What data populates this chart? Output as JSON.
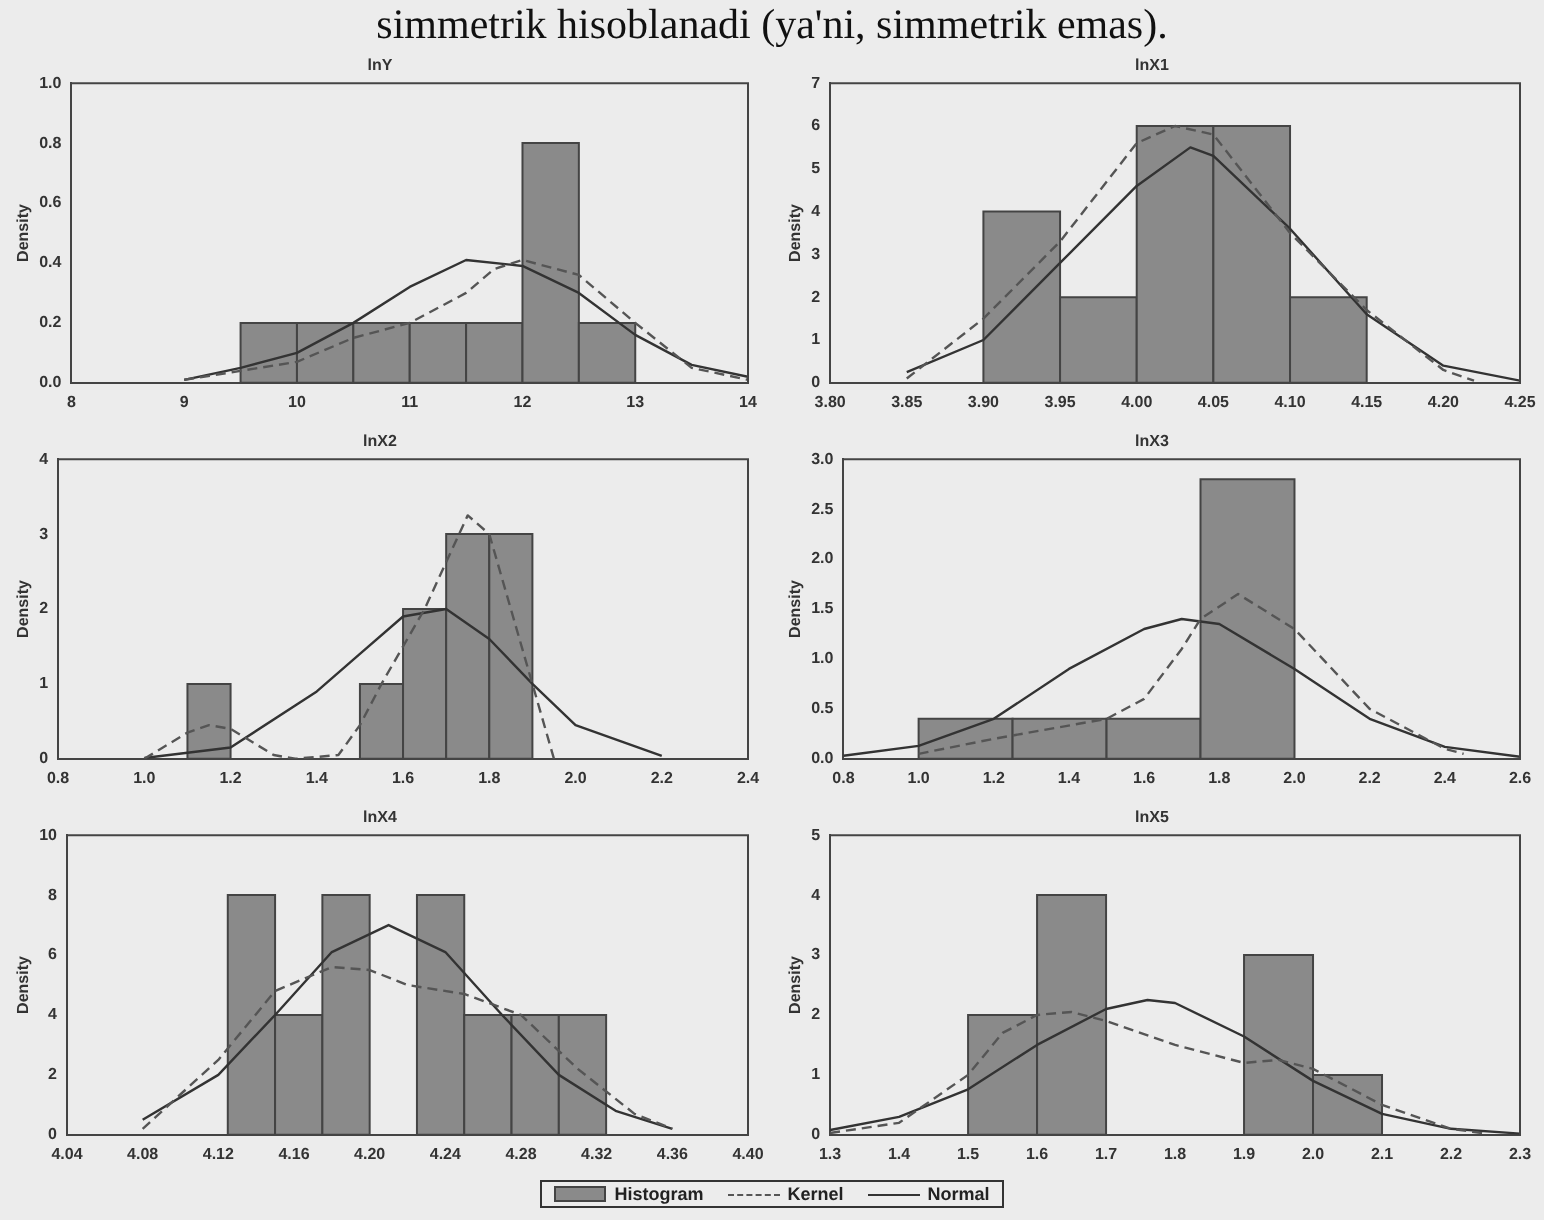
{
  "chart_data": [
    {
      "type": "histogram",
      "title": "lnY",
      "ylabel": "Density",
      "annotations": [
        "simmetrik hisoblanadi (ya'ni, simmetrik emas)."
      ],
      "xlim": [
        8,
        14
      ],
      "xticks": [
        8,
        9,
        10,
        11,
        12,
        13,
        14
      ],
      "ylim": [
        0,
        1
      ],
      "yticks": [
        {
          "value": 0,
          "label": "0.0"
        },
        0.2,
        0.4,
        0.6,
        0.8,
        {
          "value": 1,
          "label": "1.0"
        }
      ],
      "grid": false,
      "marker": "none",
      "series": [
        {
          "color": "#8a8a8a",
          "bins": [
            9.5,
            10,
            10.5,
            11,
            11.5,
            12,
            12.5,
            13
          ],
          "values": [
            0.2,
            0.2,
            0.2,
            0.2,
            0.2,
            0.8,
            0.2
          ]
        },
        {
          "type": "line",
          "line_style": "dashed",
          "color": "#555555",
          "x": [
            9,
            9.5,
            10,
            10.5,
            11,
            11.5,
            11.75,
            12,
            12.5,
            13,
            13.5,
            14
          ],
          "values": [
            0.01,
            0.04,
            0.07,
            0.15,
            0.2,
            0.3,
            0.38,
            0.41,
            0.36,
            0.2,
            0.05,
            0.01
          ]
        },
        {
          "type": "line",
          "line_style": "solid",
          "color": "#333333",
          "x": [
            9,
            9.5,
            10,
            10.5,
            11,
            11.5,
            12,
            12.5,
            13,
            13.5,
            14
          ],
          "values": [
            0.01,
            0.05,
            0.1,
            0.2,
            0.32,
            0.41,
            0.39,
            0.3,
            0.16,
            0.06,
            0.02
          ]
        }
      ]
    },
    {
      "type": "histogram",
      "title": "lnX1",
      "ylabel": "Density",
      "xlim": [
        3.8,
        4.25
      ],
      "xticks": [
        {
          "value": 3.8,
          "label": "3.80"
        },
        3.85,
        {
          "value": 3.9,
          "label": "3.90"
        },
        3.95,
        {
          "value": 4,
          "label": "4.00"
        },
        4.05,
        {
          "value": 4.1,
          "label": "4.10"
        },
        4.15,
        {
          "value": 4.2,
          "label": "4.20"
        },
        4.25
      ],
      "ylim": [
        0,
        7
      ],
      "yticks": [
        0,
        1,
        2,
        3,
        4,
        5,
        6,
        7
      ],
      "grid": false,
      "marker": "none",
      "series": [
        {
          "color": "#8a8a8a",
          "bins": [
            3.9,
            3.95,
            4,
            4.05,
            4.1,
            4.15
          ],
          "values": [
            4,
            2,
            6,
            6,
            2
          ]
        },
        {
          "type": "line",
          "line_style": "dashed",
          "color": "#555555",
          "x": [
            3.85,
            3.9,
            3.95,
            4,
            4.025,
            4.05,
            4.1,
            4.15,
            4.2,
            4.22
          ],
          "values": [
            0.1,
            1.5,
            3.3,
            5.6,
            6,
            5.8,
            3.5,
            1.7,
            0.3,
            0.05
          ]
        },
        {
          "type": "line",
          "line_style": "solid",
          "color": "#333333",
          "x": [
            3.85,
            3.9,
            3.95,
            4,
            4.035,
            4.05,
            4.1,
            4.15,
            4.2,
            4.25
          ],
          "values": [
            0.25,
            1,
            2.8,
            4.6,
            5.5,
            5.3,
            3.6,
            1.6,
            0.4,
            0.05
          ]
        }
      ]
    },
    {
      "type": "histogram",
      "title": "lnX2",
      "ylabel": "Density",
      "xlim": [
        0.8,
        2.4
      ],
      "xticks": [
        0.8,
        {
          "value": 1,
          "label": "1.0"
        },
        1.2,
        1.4,
        1.6,
        1.8,
        {
          "value": 2,
          "label": "2.0"
        },
        2.2,
        2.4
      ],
      "ylim": [
        0,
        4
      ],
      "yticks": [
        0,
        1,
        2,
        3,
        4
      ],
      "grid": false,
      "marker": "none",
      "series": [
        {
          "color": "#8a8a8a",
          "bins": [
            1.1,
            1.2,
            1.3,
            1.4,
            1.5,
            1.6,
            1.7,
            1.8,
            1.9
          ],
          "values": [
            1,
            0,
            0,
            0,
            1,
            2,
            3,
            3
          ]
        },
        {
          "type": "line",
          "line_style": "dashed",
          "color": "#555555",
          "x": [
            1,
            1.1,
            1.15,
            1.2,
            1.3,
            1.35,
            1.45,
            1.5,
            1.55,
            1.65,
            1.75,
            1.8,
            1.9,
            1.95
          ],
          "values": [
            0,
            0.35,
            0.45,
            0.4,
            0.05,
            0,
            0.05,
            0.45,
            1,
            2,
            3.25,
            3,
            1,
            0
          ]
        },
        {
          "type": "line",
          "line_style": "solid",
          "color": "#333333",
          "x": [
            1,
            1.2,
            1.4,
            1.5,
            1.6,
            1.7,
            1.8,
            1.9,
            2,
            2.2
          ],
          "values": [
            0.01,
            0.15,
            0.9,
            1.4,
            1.9,
            2,
            1.6,
            1,
            0.45,
            0.04
          ]
        }
      ]
    },
    {
      "type": "histogram",
      "title": "lnX3",
      "ylabel": "Density",
      "xlim": [
        0.8,
        2.6
      ],
      "xticks": [
        0.8,
        {
          "value": 1,
          "label": "1.0"
        },
        1.2,
        1.4,
        1.6,
        1.8,
        {
          "value": 2,
          "label": "2.0"
        },
        2.2,
        2.4,
        2.6
      ],
      "ylim": [
        0,
        3
      ],
      "yticks": [
        {
          "value": 0,
          "label": "0.0"
        },
        0.5,
        {
          "value": 1,
          "label": "1.0"
        },
        1.5,
        {
          "value": 2,
          "label": "2.0"
        },
        2.5,
        {
          "value": 3,
          "label": "3.0"
        }
      ],
      "grid": false,
      "marker": "none",
      "series": [
        {
          "color": "#8a8a8a",
          "bins": [
            1,
            1.25,
            1.5,
            1.75,
            2
          ],
          "values": [
            0.4,
            0.4,
            0.4,
            2.8
          ]
        },
        {
          "type": "line",
          "line_style": "dashed",
          "color": "#555555",
          "x": [
            1,
            1.2,
            1.5,
            1.6,
            1.7,
            1.75,
            1.85,
            2,
            2.2,
            2.4,
            2.45
          ],
          "values": [
            0.05,
            0.2,
            0.4,
            0.6,
            1.1,
            1.4,
            1.65,
            1.3,
            0.5,
            0.1,
            0.05
          ]
        },
        {
          "type": "line",
          "line_style": "solid",
          "color": "#333333",
          "x": [
            0.8,
            1,
            1.2,
            1.4,
            1.6,
            1.7,
            1.8,
            2,
            2.2,
            2.4,
            2.6
          ],
          "values": [
            0.03,
            0.13,
            0.4,
            0.9,
            1.3,
            1.4,
            1.35,
            0.9,
            0.4,
            0.12,
            0.02
          ]
        }
      ]
    },
    {
      "type": "histogram",
      "title": "lnX4",
      "ylabel": "Density",
      "xlim": [
        4.04,
        4.4
      ],
      "xticks": [
        4.04,
        4.08,
        4.12,
        4.16,
        {
          "value": 4.2,
          "label": "4.20"
        },
        4.24,
        4.28,
        4.32,
        4.36,
        {
          "value": 4.4,
          "label": "4.40"
        }
      ],
      "ylim": [
        0,
        10
      ],
      "yticks": [
        0,
        2,
        4,
        6,
        8,
        10
      ],
      "grid": false,
      "marker": "none",
      "series": [
        {
          "color": "#8a8a8a",
          "bins": [
            4.125,
            4.15,
            4.175,
            4.2,
            4.225,
            4.25,
            4.275,
            4.3,
            4.325
          ],
          "values": [
            8,
            4,
            8,
            0,
            8,
            4,
            4,
            4
          ]
        },
        {
          "type": "line",
          "line_style": "dashed",
          "color": "#555555",
          "x": [
            4.08,
            4.12,
            4.15,
            4.18,
            4.2,
            4.22,
            4.25,
            4.28,
            4.31,
            4.34,
            4.36
          ],
          "values": [
            0.2,
            2.5,
            4.8,
            5.6,
            5.5,
            5,
            4.7,
            4,
            2.2,
            0.7,
            0.2
          ]
        },
        {
          "type": "line",
          "line_style": "solid",
          "color": "#333333",
          "x": [
            4.08,
            4.12,
            4.15,
            4.18,
            4.21,
            4.24,
            4.27,
            4.3,
            4.33,
            4.36
          ],
          "values": [
            0.5,
            2,
            4,
            6.1,
            7,
            6.1,
            4,
            2,
            0.8,
            0.2
          ]
        }
      ]
    },
    {
      "type": "histogram",
      "title": "lnX5",
      "ylabel": "Density",
      "legend": "bottom",
      "xlim": [
        1.3,
        2.3
      ],
      "xticks": [
        1.3,
        1.4,
        1.5,
        1.6,
        1.7,
        1.8,
        1.9,
        {
          "value": 2,
          "label": "2.0"
        },
        2.1,
        2.2,
        2.3
      ],
      "ylim": [
        0,
        5
      ],
      "yticks": [
        0,
        1,
        2,
        3,
        4,
        5
      ],
      "grid": false,
      "marker": "none",
      "series": [
        {
          "name": "Histogram",
          "color": "#8a8a8a",
          "bins": [
            1.5,
            1.6,
            1.7,
            1.8,
            1.9,
            2,
            2.1
          ],
          "values": [
            2,
            4,
            0,
            0,
            3,
            1
          ]
        },
        {
          "type": "line",
          "name": "Kernel",
          "line_style": "dashed",
          "color": "#555555",
          "x": [
            1.3,
            1.4,
            1.5,
            1.55,
            1.6,
            1.65,
            1.7,
            1.8,
            1.9,
            1.95,
            2,
            2.1,
            2.2,
            2.25
          ],
          "values": [
            0.03,
            0.2,
            1,
            1.7,
            2,
            2.05,
            1.9,
            1.5,
            1.2,
            1.25,
            1.1,
            0.5,
            0.1,
            0.02
          ]
        },
        {
          "type": "line",
          "name": "Normal",
          "line_style": "solid",
          "color": "#333333",
          "x": [
            1.3,
            1.4,
            1.5,
            1.6,
            1.7,
            1.76,
            1.8,
            1.9,
            2,
            2.1,
            2.2,
            2.3
          ],
          "values": [
            0.08,
            0.3,
            0.76,
            1.5,
            2.1,
            2.25,
            2.2,
            1.64,
            0.9,
            0.35,
            0.1,
            0.02
          ]
        }
      ]
    }
  ]
}
